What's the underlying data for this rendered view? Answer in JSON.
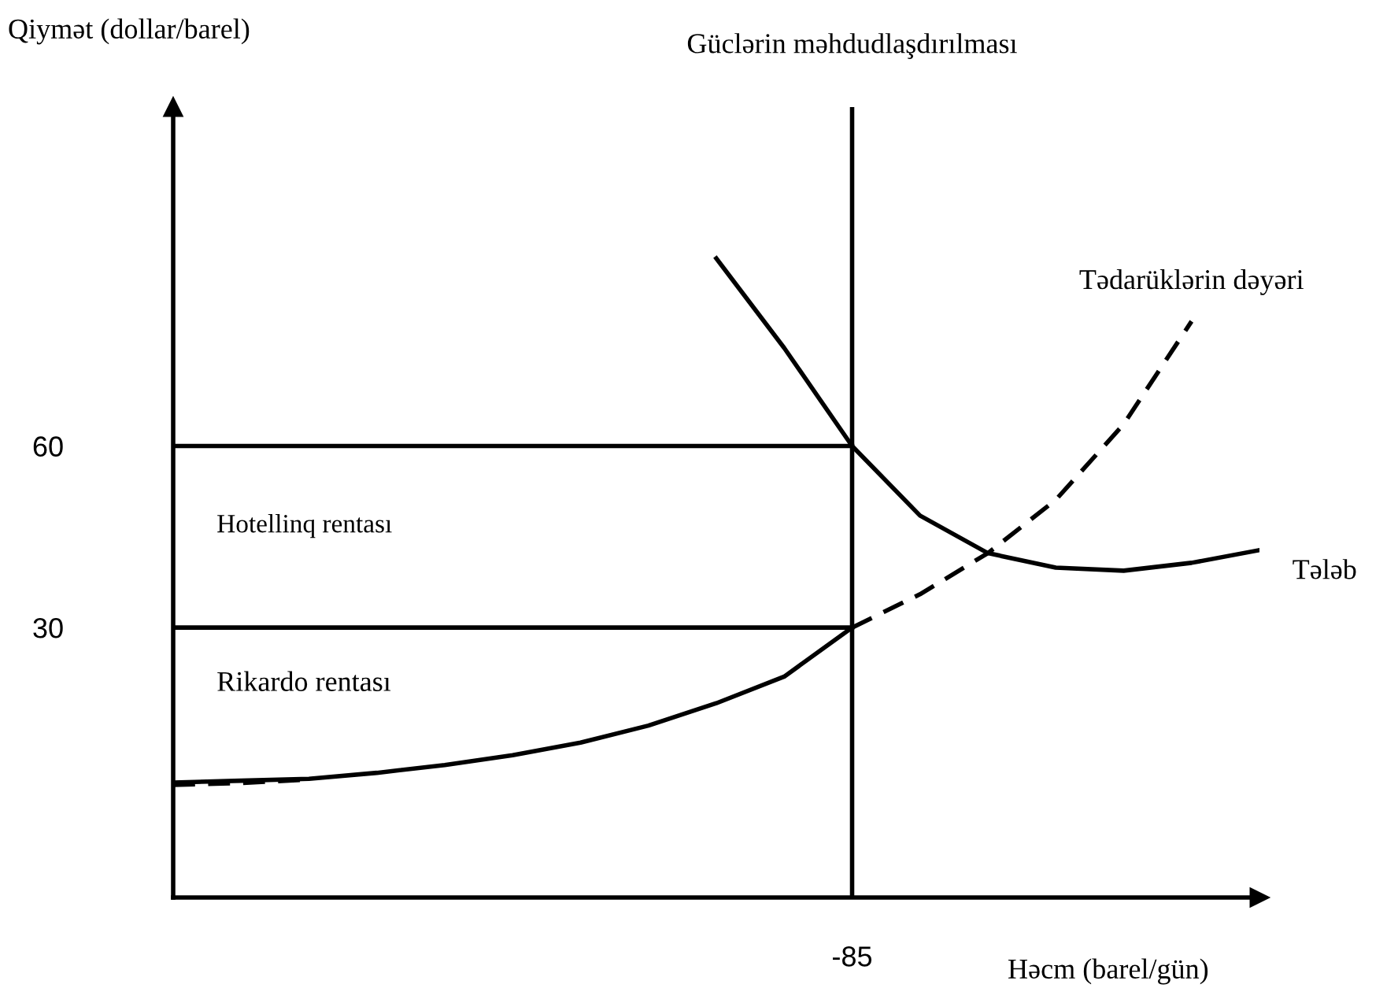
{
  "chart_data": {
    "type": "line",
    "ylabel": "Qiymət (dollar/barel)",
    "xlabel": "Həcm (barel/gün)",
    "categories": [
      null,
      null,
      null,
      null,
      null,
      null,
      null,
      null,
      null,
      null,
      "-85",
      null,
      null,
      null,
      null,
      null,
      null
    ],
    "ylim": [
      -14.6,
      116
    ],
    "yticks": [
      30,
      60
    ],
    "grid": false,
    "legend": false,
    "marker": "none",
    "series": [
      {
        "color": "#000000",
        "line_style": "solid",
        "values": [
          60,
          60,
          60,
          60,
          60,
          60,
          60,
          60,
          60,
          60,
          60,
          null,
          null,
          null,
          null,
          null,
          null
        ]
      },
      {
        "color": "#000000",
        "line_style": "solid",
        "values": [
          30,
          30,
          30,
          30,
          30,
          30,
          30,
          30,
          30,
          30,
          30,
          null,
          null,
          null,
          null,
          null,
          null
        ]
      },
      {
        "color": "#000000",
        "line_style": "solid",
        "values": [
          4.4,
          4.7,
          5.0,
          6.0,
          7.3,
          8.9,
          11.0,
          13.8,
          17.5,
          21.9,
          30,
          null,
          null,
          null,
          null,
          null,
          null
        ]
      },
      {
        "color": "#000000",
        "line_style": "dashed",
        "values": [
          4.0,
          4.3,
          4.9,
          null,
          null,
          null,
          null,
          null,
          null,
          null,
          null,
          null,
          null,
          null,
          null,
          null,
          null
        ]
      },
      {
        "name": "Tədarüklərin dəyəri",
        "color": "#000000",
        "line_style": "dashed",
        "values": [
          null,
          null,
          null,
          null,
          null,
          null,
          null,
          null,
          null,
          null,
          30,
          35.5,
          42.3,
          51.1,
          63.6,
          80.6,
          null
        ]
      },
      {
        "name": "Tələb",
        "color": "#000000",
        "line_style": "solid",
        "values": [
          null,
          null,
          null,
          null,
          null,
          null,
          null,
          null,
          91.0,
          76.2,
          60,
          48.5,
          42.3,
          39.9,
          39.4,
          40.7,
          42.8
        ]
      }
    ],
    "ref_lines": [
      {
        "axis": "x",
        "value": "-85",
        "label": "Güclərin məhdudlaşdırılması",
        "color": "#000000"
      }
    ],
    "annotations": [
      "Hotellinq rentası",
      "Rikardo rentası"
    ]
  }
}
